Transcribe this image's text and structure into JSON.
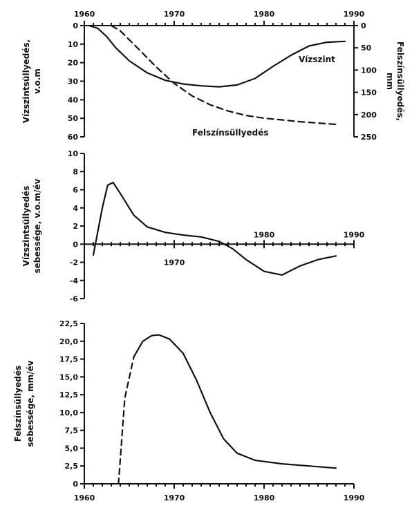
{
  "chart_data": [
    {
      "type": "line",
      "x_tick_labels": [
        "1960",
        "1970",
        "1980",
        "1990"
      ],
      "xlim": [
        1960,
        1990
      ],
      "ylabel_left": "Vízszintsüllyedés, v.o.m",
      "ylabel_right": "Felszínsüllyedés, mm",
      "ylim_left": [
        60,
        0
      ],
      "ylim_right": [
        250,
        0
      ],
      "yticks_left": [
        "0",
        "10",
        "20",
        "30",
        "40",
        "50",
        "60"
      ],
      "yticks_right": [
        "0",
        "50",
        "100",
        "150",
        "200",
        "250"
      ],
      "series": [
        {
          "name": "Vízszint",
          "axis": "left",
          "x": [
            1960.5,
            1961.5,
            1962.5,
            1963.5,
            1965,
            1967,
            1969,
            1971,
            1973,
            1975,
            1977,
            1979,
            1981,
            1983,
            1985,
            1987,
            1989
          ],
          "y": [
            0,
            1.5,
            6,
            12,
            19,
            25.5,
            29.5,
            31.5,
            32.5,
            33,
            32,
            28.5,
            22,
            16,
            11,
            9,
            8.5
          ]
        },
        {
          "name": "Felszínsüllyedés",
          "axis": "right",
          "x": [
            1963,
            1964,
            1966,
            1968,
            1970,
            1972,
            1974,
            1976,
            1978,
            1980,
            1982,
            1984,
            1986,
            1988
          ],
          "y": [
            0,
            12,
            52,
            93,
            130,
            158,
            178,
            192,
            202,
            208,
            212,
            216,
            219,
            222
          ]
        }
      ],
      "annotations": [
        "Vízszint",
        "Felszínsüllyedés"
      ]
    },
    {
      "type": "line",
      "xlim": [
        1960,
        1990
      ],
      "x_tick_labels": [
        "1970",
        "1980",
        "1990"
      ],
      "ylabel": "Vízszintsüllyedés sebessége, v.o.m/év",
      "ylim": [
        -6,
        10
      ],
      "yticks": [
        "10",
        "8",
        "6",
        "4",
        "2",
        "0",
        "-2",
        "-4",
        "-6"
      ],
      "series": [
        {
          "x": [
            1961,
            1962,
            1962.6,
            1963.2,
            1964,
            1965.5,
            1967,
            1969,
            1971,
            1973,
            1975,
            1976.5,
            1978,
            1980,
            1982,
            1984,
            1986,
            1988
          ],
          "y": [
            -1.2,
            4,
            6.5,
            6.8,
            5.6,
            3.2,
            1.9,
            1.3,
            1.0,
            0.8,
            0.3,
            -0.5,
            -1.7,
            -3.0,
            -3.4,
            -2.4,
            -1.7,
            -1.3
          ]
        }
      ]
    },
    {
      "type": "line",
      "x_tick_labels": [
        "1960",
        "1970",
        "1980",
        "1990"
      ],
      "xlim": [
        1960,
        1990
      ],
      "ylabel": "Felszínsüllyedés sebessége, mm/év",
      "ylim": [
        0,
        22.5
      ],
      "yticks": [
        "22,5",
        "20,0",
        "17,5",
        "15,0",
        "12,5",
        "10,0",
        "7,5",
        "5,0",
        "2,5",
        "0"
      ],
      "series": [
        {
          "x": [
            1963.8,
            1964.5,
            1965.5,
            1966.5,
            1967.5,
            1968.3,
            1969.5,
            1971,
            1972.5,
            1974,
            1975.5,
            1977,
            1979,
            1982,
            1985,
            1988
          ],
          "y": [
            0,
            12,
            17.8,
            20,
            20.8,
            20.9,
            20.3,
            18.3,
            14.5,
            10,
            6.3,
            4.3,
            3.3,
            2.8,
            2.5,
            2.2
          ]
        }
      ]
    }
  ]
}
